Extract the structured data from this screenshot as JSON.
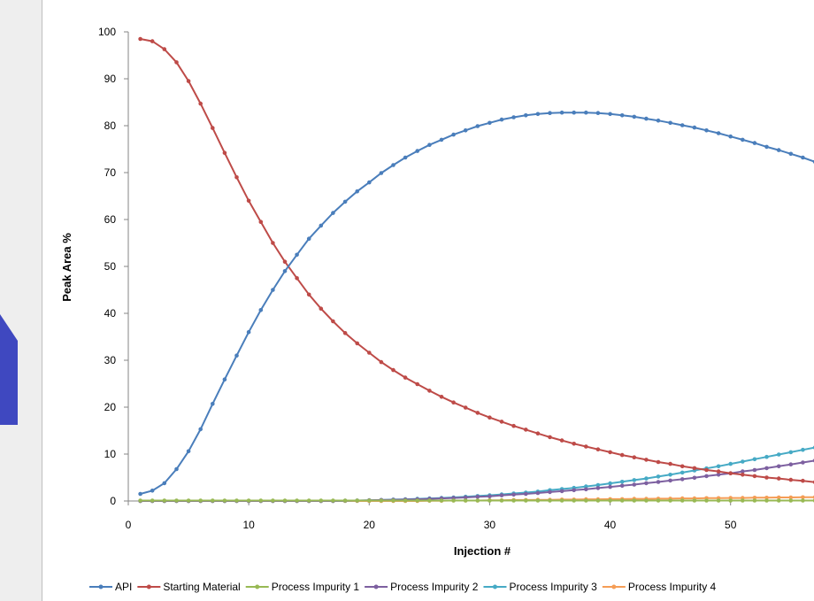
{
  "background_graphic": {
    "color": "#3f48c0"
  },
  "chart_data": {
    "type": "line",
    "title": "",
    "xlabel": "Injection #",
    "ylabel": "Peak Area %",
    "xlim": [
      0,
      57
    ],
    "ylim": [
      0,
      100
    ],
    "x_ticks": [
      0,
      10,
      20,
      30,
      40,
      50
    ],
    "y_ticks": [
      0,
      10,
      20,
      30,
      40,
      50,
      60,
      70,
      80,
      90,
      100
    ],
    "grid": false,
    "legend_position": "bottom",
    "x": [
      1,
      2,
      3,
      4,
      5,
      6,
      7,
      8,
      9,
      10,
      11,
      12,
      13,
      14,
      15,
      16,
      17,
      18,
      19,
      20,
      21,
      22,
      23,
      24,
      25,
      26,
      27,
      28,
      29,
      30,
      31,
      32,
      33,
      34,
      35,
      36,
      37,
      38,
      39,
      40,
      41,
      42,
      43,
      44,
      45,
      46,
      47,
      48,
      49,
      50,
      51,
      52,
      53,
      54,
      55,
      56,
      57
    ],
    "series": [
      {
        "name": "API",
        "color": "#4a7ebb",
        "values": [
          1.5,
          2.2,
          3.8,
          6.8,
          10.6,
          15.3,
          20.7,
          25.9,
          31.0,
          36.0,
          40.7,
          45.0,
          49.0,
          52.5,
          55.9,
          58.7,
          61.4,
          63.8,
          66.0,
          67.9,
          69.9,
          71.6,
          73.2,
          74.6,
          75.9,
          77.0,
          78.1,
          79.0,
          79.9,
          80.6,
          81.3,
          81.8,
          82.2,
          82.5,
          82.7,
          82.8,
          82.8,
          82.8,
          82.7,
          82.5,
          82.2,
          81.9,
          81.5,
          81.1,
          80.6,
          80.1,
          79.6,
          79.0,
          78.4,
          77.7,
          77.0,
          76.3,
          75.5,
          74.8,
          74.0,
          73.2,
          72.3
        ]
      },
      {
        "name": "Starting Material",
        "color": "#be4b48",
        "values": [
          98.5,
          98.0,
          96.3,
          93.5,
          89.5,
          84.7,
          79.5,
          74.2,
          69.0,
          64.0,
          59.5,
          55.0,
          51.0,
          47.5,
          44.0,
          41.0,
          38.3,
          35.8,
          33.6,
          31.6,
          29.6,
          27.9,
          26.3,
          24.9,
          23.5,
          22.2,
          21.0,
          19.9,
          18.8,
          17.8,
          16.9,
          16.0,
          15.2,
          14.4,
          13.6,
          12.9,
          12.2,
          11.6,
          11.0,
          10.4,
          9.8,
          9.3,
          8.8,
          8.3,
          7.9,
          7.4,
          7.0,
          6.6,
          6.3,
          5.9,
          5.6,
          5.3,
          5.0,
          4.8,
          4.5,
          4.3,
          4.0
        ]
      },
      {
        "name": "Process Impurity 1",
        "color": "#98b954",
        "values": [
          0.1,
          0.1,
          0.1,
          0.1,
          0.1,
          0.1,
          0.1,
          0.1,
          0.1,
          0.1,
          0.1,
          0.1,
          0.1,
          0.1,
          0.1,
          0.1,
          0.1,
          0.1,
          0.1,
          0.1,
          0.1,
          0.1,
          0.1,
          0.1,
          0.1,
          0.1,
          0.1,
          0.1,
          0.1,
          0.1,
          0.1,
          0.1,
          0.1,
          0.1,
          0.1,
          0.1,
          0.1,
          0.1,
          0.1,
          0.1,
          0.1,
          0.1,
          0.1,
          0.1,
          0.1,
          0.1,
          0.1,
          0.1,
          0.1,
          0.1,
          0.1,
          0.1,
          0.1,
          0.1,
          0.1,
          0.1,
          0.1
        ]
      },
      {
        "name": "Process Impurity 2",
        "color": "#7d60a0",
        "values": [
          0.0,
          0.0,
          0.0,
          0.0,
          0.0,
          0.0,
          0.0,
          0.0,
          0.0,
          0.0,
          0.0,
          0.0,
          0.0,
          0.0,
          0.0,
          0.0,
          0.0,
          0.05,
          0.1,
          0.15,
          0.2,
          0.25,
          0.3,
          0.35,
          0.45,
          0.55,
          0.65,
          0.75,
          0.9,
          1.0,
          1.2,
          1.35,
          1.5,
          1.7,
          1.9,
          2.1,
          2.3,
          2.5,
          2.75,
          3.0,
          3.25,
          3.5,
          3.8,
          4.05,
          4.35,
          4.65,
          4.95,
          5.3,
          5.6,
          5.9,
          6.3,
          6.6,
          7.0,
          7.4,
          7.8,
          8.2,
          8.6
        ]
      },
      {
        "name": "Process Impurity 3",
        "color": "#46aac5",
        "values": [
          0.0,
          0.0,
          0.0,
          0.0,
          0.0,
          0.0,
          0.0,
          0.0,
          0.0,
          0.0,
          0.0,
          0.0,
          0.0,
          0.0,
          0.0,
          0.0,
          0.0,
          0.05,
          0.1,
          0.15,
          0.2,
          0.3,
          0.35,
          0.45,
          0.55,
          0.65,
          0.75,
          0.9,
          1.05,
          1.2,
          1.4,
          1.6,
          1.8,
          2.0,
          2.3,
          2.55,
          2.8,
          3.1,
          3.4,
          3.75,
          4.1,
          4.45,
          4.8,
          5.2,
          5.6,
          6.05,
          6.5,
          6.95,
          7.4,
          7.9,
          8.4,
          8.9,
          9.4,
          9.9,
          10.4,
          10.9,
          11.4
        ]
      },
      {
        "name": "Process Impurity 4",
        "color": "#f59d56",
        "values": [
          0.0,
          0.0,
          0.0,
          0.0,
          0.0,
          0.0,
          0.0,
          0.0,
          0.0,
          0.0,
          0.0,
          0.0,
          0.0,
          0.0,
          0.0,
          0.0,
          0.0,
          0.0,
          0.0,
          0.0,
          0.0,
          0.0,
          0.0,
          0.0,
          0.05,
          0.05,
          0.1,
          0.1,
          0.1,
          0.15,
          0.15,
          0.2,
          0.2,
          0.25,
          0.25,
          0.3,
          0.3,
          0.35,
          0.35,
          0.4,
          0.4,
          0.45,
          0.45,
          0.5,
          0.5,
          0.55,
          0.55,
          0.6,
          0.6,
          0.65,
          0.65,
          0.7,
          0.7,
          0.75,
          0.75,
          0.8,
          0.8
        ]
      }
    ]
  }
}
